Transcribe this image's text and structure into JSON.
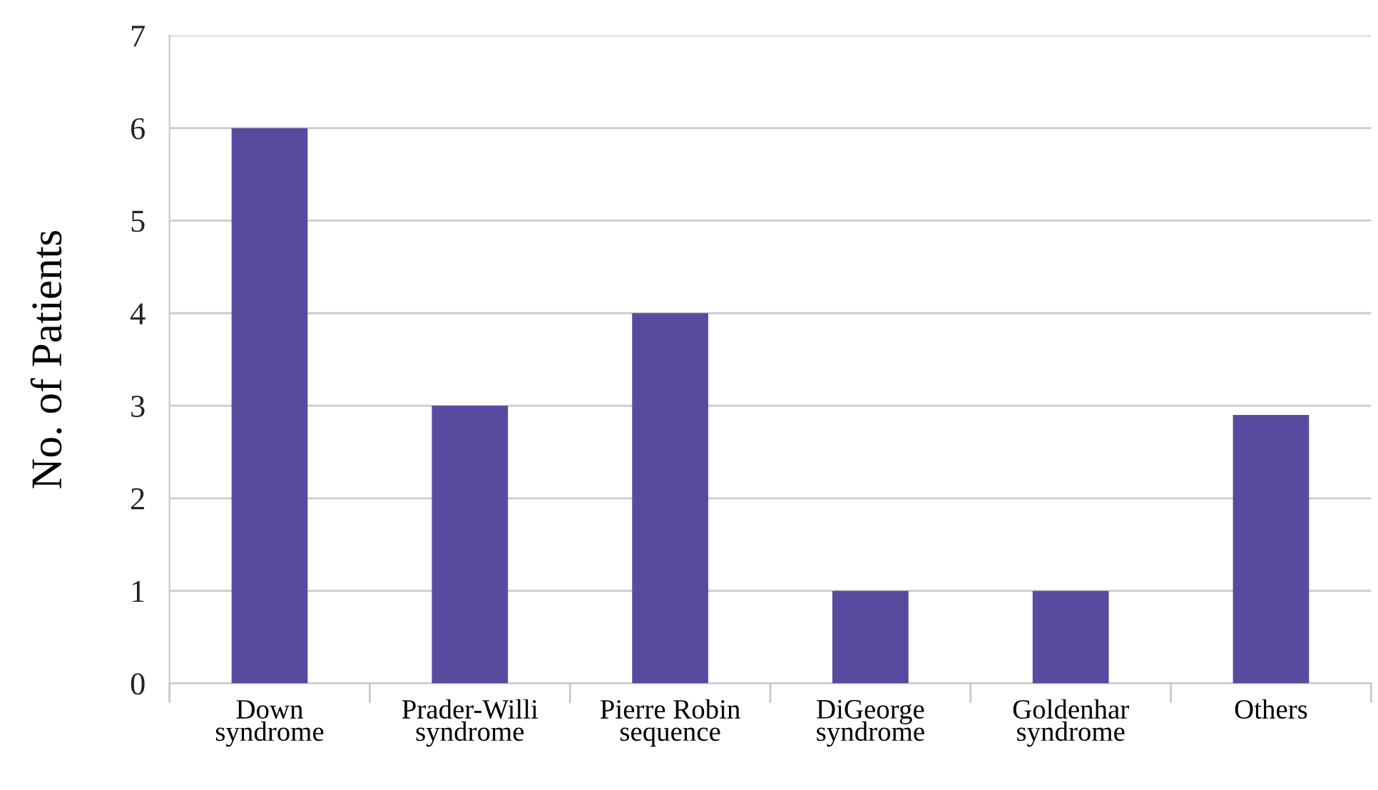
{
  "chart_data": {
    "type": "bar",
    "ylabel": "No. of Patients",
    "categories": [
      "Down\nsyndrome",
      "Prader-Willi\nsyndrome",
      "Pierre Robin\nsequence",
      "DiGeorge\nsyndrome",
      "Goldenhar\nsyndrome",
      "Others"
    ],
    "values": [
      6,
      3,
      4,
      1,
      1,
      2.9
    ],
    "color": "#574b9f",
    "ylim": [
      0,
      7
    ],
    "yticks": [
      0,
      1,
      2,
      3,
      4,
      5,
      6,
      7
    ],
    "grid": "y"
  }
}
